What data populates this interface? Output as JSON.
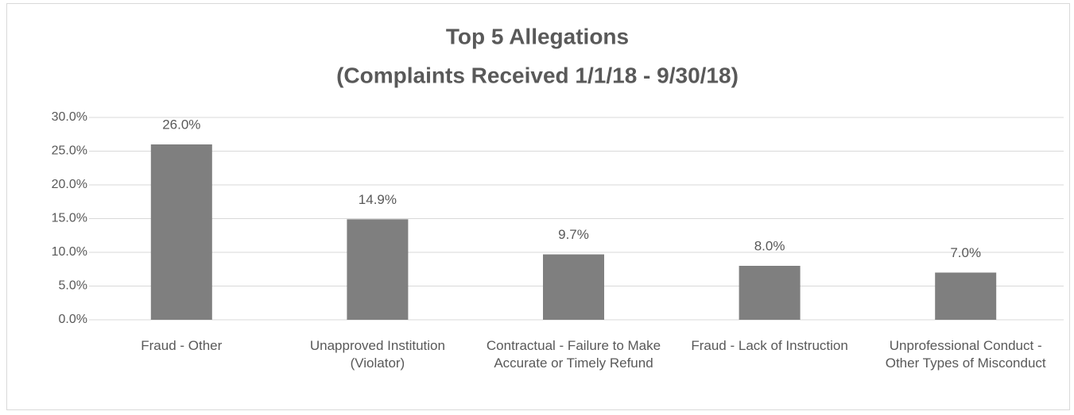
{
  "chart_data": {
    "type": "bar",
    "title": "Top 5 Allegations",
    "subtitle": "(Complaints Received 1/1/18 - 9/30/18)",
    "categories": [
      "Fraud - Other",
      "Unapproved Institution (Violator)",
      "Contractual - Failure to Make Accurate or Timely Refund",
      "Fraud - Lack of Instruction",
      "Unprofessional Conduct - Other Types of Misconduct"
    ],
    "values": [
      26.0,
      14.9,
      9.7,
      8.0,
      7.0
    ],
    "value_labels": [
      "26.0%",
      "14.9%",
      "9.7%",
      "8.0%",
      "7.0%"
    ],
    "color": "#7f7f7f",
    "ylim": [
      0,
      30
    ],
    "yticks": [
      {
        "value": 0,
        "label": "0.0%"
      },
      {
        "value": 5,
        "label": "5.0%"
      },
      {
        "value": 10,
        "label": "10.0%"
      },
      {
        "value": 15,
        "label": "15.0%"
      },
      {
        "value": 20,
        "label": "20.0%"
      },
      {
        "value": 25,
        "label": "25.0%"
      },
      {
        "value": 30,
        "label": "30.0%"
      }
    ],
    "grid": true
  }
}
